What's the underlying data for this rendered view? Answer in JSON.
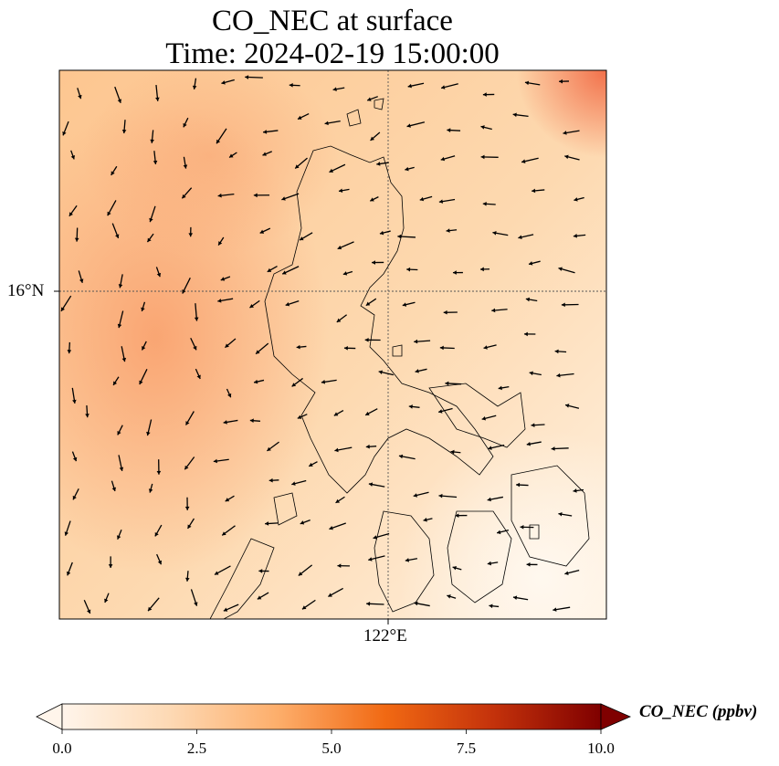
{
  "title_line1": "CO_NEC at surface",
  "title_line2": "Time: 2024-02-19 15:00:00",
  "lat_tick": "16°N",
  "lon_tick": "122°E",
  "colorbar": {
    "label": "CO_NEC (ppbv)",
    "ticks": [
      "0.0",
      "2.5",
      "5.0",
      "7.5",
      "10.0"
    ],
    "min": 0,
    "max": 10,
    "colors": [
      "#fff5eb",
      "#fdd9b4",
      "#fdae6b",
      "#f16913",
      "#c4320b",
      "#7f0000"
    ]
  },
  "chart_data": {
    "type": "heatmap",
    "title": "CO_NEC at surface\nTime: 2024-02-19 15:00:00",
    "variable": "CO_NEC",
    "units": "ppbv",
    "value_range": [
      0,
      10
    ],
    "gridlines": {
      "lat": [
        "16°N"
      ],
      "lon": [
        "122°E"
      ]
    },
    "overlays": [
      "coastlines",
      "wind-vectors"
    ],
    "approx_values": {
      "west_plume": 4.5,
      "north_east_corner": 6.0,
      "central": 2.5,
      "south_east": 0.5
    }
  }
}
